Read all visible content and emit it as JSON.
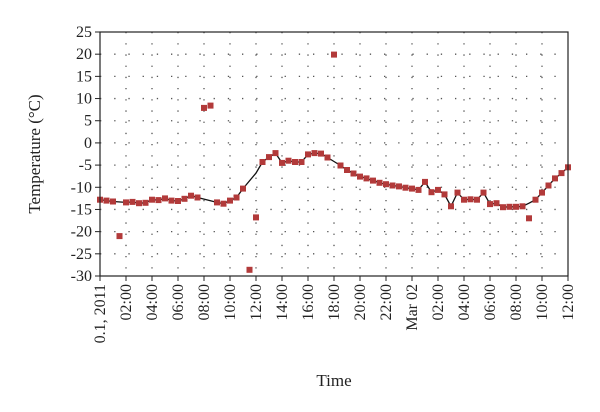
{
  "chart_data": {
    "type": "scatter",
    "title": "",
    "xlabel": "Time",
    "ylabel": "Temperature (°C)",
    "ylim": [
      -30,
      25
    ],
    "y_ticks": [
      25,
      20,
      15,
      10,
      5,
      0,
      -5,
      -10,
      -15,
      -20,
      -25,
      -30
    ],
    "xlim": [
      "2011-03-01 00:00",
      "2011-03-02 12:00"
    ],
    "x_ticks": [
      {
        "label": "0.1, 2011",
        "time": "2011-03-01 00:00"
      },
      {
        "label": "02:00",
        "time": "2011-03-01 02:00"
      },
      {
        "label": "04:00",
        "time": "2011-03-01 04:00"
      },
      {
        "label": "06:00",
        "time": "2011-03-01 06:00"
      },
      {
        "label": "08:00",
        "time": "2011-03-01 08:00"
      },
      {
        "label": "10:00",
        "time": "2011-03-01 10:00"
      },
      {
        "label": "12:00",
        "time": "2011-03-01 12:00"
      },
      {
        "label": "14:00",
        "time": "2011-03-01 14:00"
      },
      {
        "label": "16:00",
        "time": "2011-03-01 16:00"
      },
      {
        "label": "18:00",
        "time": "2011-03-01 18:00"
      },
      {
        "label": "20:00",
        "time": "2011-03-01 20:00"
      },
      {
        "label": "22:00",
        "time": "2011-03-01 22:00"
      },
      {
        "label": "Mar 02",
        "time": "2011-03-02 00:00"
      },
      {
        "label": "02:00",
        "time": "2011-03-02 02:00"
      },
      {
        "label": "04:00",
        "time": "2011-03-02 04:00"
      },
      {
        "label": "06:00",
        "time": "2011-03-02 06:00"
      },
      {
        "label": "08:00",
        "time": "2011-03-02 08:00"
      },
      {
        "label": "10:00",
        "time": "2011-03-02 10:00"
      },
      {
        "label": "12:00",
        "time": "2011-03-02 12:00"
      }
    ],
    "grid": true,
    "grid_style": "dotted",
    "legend": false,
    "colors": {
      "marker": "#b23a3a",
      "line": "#111111",
      "grid": "#555555"
    },
    "series": [
      {
        "kind": "line",
        "points": [
          [
            "2011-03-01 00:00",
            -12.8
          ],
          [
            "2011-03-01 00:30",
            -13.0
          ],
          [
            "2011-03-01 01:00",
            -13.2
          ],
          [
            "2011-03-01 02:00",
            -13.4
          ],
          [
            "2011-03-01 02:30",
            -13.3
          ],
          [
            "2011-03-01 03:00",
            -13.6
          ],
          [
            "2011-03-01 03:30",
            -13.5
          ],
          [
            "2011-03-01 04:00",
            -12.8
          ],
          [
            "2011-03-01 04:30",
            -12.9
          ],
          [
            "2011-03-01 05:00",
            -12.5
          ],
          [
            "2011-03-01 05:30",
            -13.0
          ],
          [
            "2011-03-01 06:00",
            -13.1
          ],
          [
            "2011-03-01 06:30",
            -12.6
          ],
          [
            "2011-03-01 07:00",
            -11.9
          ],
          [
            "2011-03-01 07:30",
            -12.3
          ],
          [
            "2011-03-01 09:00",
            -13.4
          ],
          [
            "2011-03-01 09:30",
            -13.7
          ],
          [
            "2011-03-01 10:00",
            -13.0
          ],
          [
            "2011-03-01 10:30",
            -12.3
          ],
          [
            "2011-03-01 11:00",
            -10.3
          ],
          [
            "2011-03-01 12:00",
            -6.8
          ],
          [
            "2011-03-01 12:30",
            -4.3
          ],
          [
            "2011-03-01 13:00",
            -3.2
          ],
          [
            "2011-03-01 13:30",
            -2.3
          ],
          [
            "2011-03-01 14:00",
            -4.5
          ],
          [
            "2011-03-01 14:30",
            -4.0
          ],
          [
            "2011-03-01 15:00",
            -4.3
          ],
          [
            "2011-03-01 15:30",
            -4.3
          ],
          [
            "2011-03-01 16:00",
            -2.6
          ],
          [
            "2011-03-01 16:30",
            -2.3
          ],
          [
            "2011-03-01 17:00",
            -2.4
          ],
          [
            "2011-03-01 17:30",
            -3.3
          ],
          [
            "2011-03-01 18:00",
            -4.2
          ],
          [
            "2011-03-01 18:30",
            -5.1
          ],
          [
            "2011-03-01 19:00",
            -6.1
          ],
          [
            "2011-03-01 19:30",
            -6.9
          ],
          [
            "2011-03-01 20:00",
            -7.6
          ],
          [
            "2011-03-01 20:30",
            -8.0
          ],
          [
            "2011-03-01 21:00",
            -8.5
          ],
          [
            "2011-03-01 21:30",
            -9.0
          ],
          [
            "2011-03-01 22:00",
            -9.3
          ],
          [
            "2011-03-01 22:30",
            -9.6
          ],
          [
            "2011-03-01 23:00",
            -9.8
          ],
          [
            "2011-03-01 23:30",
            -10.1
          ],
          [
            "2011-03-02 00:00",
            -10.3
          ],
          [
            "2011-03-02 00:30",
            -10.6
          ],
          [
            "2011-03-02 01:00",
            -8.8
          ],
          [
            "2011-03-02 01:30",
            -11.1
          ],
          [
            "2011-03-02 02:00",
            -10.6
          ],
          [
            "2011-03-02 02:30",
            -11.6
          ],
          [
            "2011-03-02 03:00",
            -14.3
          ],
          [
            "2011-03-02 03:30",
            -11.2
          ],
          [
            "2011-03-02 04:00",
            -12.8
          ],
          [
            "2011-03-02 04:30",
            -12.7
          ],
          [
            "2011-03-02 05:00",
            -12.8
          ],
          [
            "2011-03-02 05:30",
            -11.2
          ],
          [
            "2011-03-02 06:00",
            -13.8
          ],
          [
            "2011-03-02 06:30",
            -13.6
          ],
          [
            "2011-03-02 07:00",
            -14.5
          ],
          [
            "2011-03-02 07:30",
            -14.4
          ],
          [
            "2011-03-02 08:00",
            -14.4
          ],
          [
            "2011-03-02 08:30",
            -14.3
          ],
          [
            "2011-03-02 09:00",
            -13.6
          ],
          [
            "2011-03-02 09:30",
            -12.8
          ],
          [
            "2011-03-02 10:00",
            -11.2
          ],
          [
            "2011-03-02 10:30",
            -9.6
          ],
          [
            "2011-03-02 11:00",
            -8.0
          ],
          [
            "2011-03-02 11:30",
            -6.8
          ],
          [
            "2011-03-02 12:00",
            -5.5
          ]
        ]
      },
      {
        "kind": "scatter",
        "points": [
          [
            "2011-03-01 00:00",
            -12.8
          ],
          [
            "2011-03-01 00:30",
            -13.0
          ],
          [
            "2011-03-01 01:00",
            -13.2
          ],
          [
            "2011-03-01 01:30",
            -21.0
          ],
          [
            "2011-03-01 02:00",
            -13.4
          ],
          [
            "2011-03-01 02:30",
            -13.3
          ],
          [
            "2011-03-01 03:00",
            -13.6
          ],
          [
            "2011-03-01 03:30",
            -13.5
          ],
          [
            "2011-03-01 04:00",
            -12.8
          ],
          [
            "2011-03-01 04:30",
            -12.9
          ],
          [
            "2011-03-01 05:00",
            -12.5
          ],
          [
            "2011-03-01 05:30",
            -13.0
          ],
          [
            "2011-03-01 06:00",
            -13.1
          ],
          [
            "2011-03-01 06:30",
            -12.6
          ],
          [
            "2011-03-01 07:00",
            -11.9
          ],
          [
            "2011-03-01 07:30",
            -12.3
          ],
          [
            "2011-03-01 08:00",
            7.9
          ],
          [
            "2011-03-01 08:30",
            8.4
          ],
          [
            "2011-03-01 09:00",
            -13.4
          ],
          [
            "2011-03-01 09:30",
            -13.7
          ],
          [
            "2011-03-01 10:00",
            -13.0
          ],
          [
            "2011-03-01 10:30",
            -12.3
          ],
          [
            "2011-03-01 11:00",
            -10.3
          ],
          [
            "2011-03-01 11:30",
            -28.6
          ],
          [
            "2011-03-01 12:00",
            -16.8
          ],
          [
            "2011-03-01 12:30",
            -4.3
          ],
          [
            "2011-03-01 13:00",
            -3.2
          ],
          [
            "2011-03-01 13:30",
            -2.3
          ],
          [
            "2011-03-01 14:00",
            -4.5
          ],
          [
            "2011-03-01 14:30",
            -4.0
          ],
          [
            "2011-03-01 15:00",
            -4.3
          ],
          [
            "2011-03-01 15:30",
            -4.3
          ],
          [
            "2011-03-01 16:00",
            -2.6
          ],
          [
            "2011-03-01 16:30",
            -2.3
          ],
          [
            "2011-03-01 17:00",
            -2.4
          ],
          [
            "2011-03-01 17:30",
            -3.3
          ],
          [
            "2011-03-01 18:00",
            19.9
          ],
          [
            "2011-03-01 18:30",
            -5.1
          ],
          [
            "2011-03-01 19:00",
            -6.1
          ],
          [
            "2011-03-01 19:30",
            -6.9
          ],
          [
            "2011-03-01 20:00",
            -7.6
          ],
          [
            "2011-03-01 20:30",
            -8.0
          ],
          [
            "2011-03-01 21:00",
            -8.5
          ],
          [
            "2011-03-01 21:30",
            -9.0
          ],
          [
            "2011-03-01 22:00",
            -9.3
          ],
          [
            "2011-03-01 22:30",
            -9.6
          ],
          [
            "2011-03-01 23:00",
            -9.8
          ],
          [
            "2011-03-01 23:30",
            -10.1
          ],
          [
            "2011-03-02 00:00",
            -10.3
          ],
          [
            "2011-03-02 00:30",
            -10.6
          ],
          [
            "2011-03-02 01:00",
            -8.8
          ],
          [
            "2011-03-02 01:30",
            -11.1
          ],
          [
            "2011-03-02 02:00",
            -10.6
          ],
          [
            "2011-03-02 02:30",
            -11.6
          ],
          [
            "2011-03-02 03:00",
            -14.3
          ],
          [
            "2011-03-02 03:30",
            -11.2
          ],
          [
            "2011-03-02 04:00",
            -12.8
          ],
          [
            "2011-03-02 04:30",
            -12.7
          ],
          [
            "2011-03-02 05:00",
            -12.8
          ],
          [
            "2011-03-02 05:30",
            -11.2
          ],
          [
            "2011-03-02 06:00",
            -13.8
          ],
          [
            "2011-03-02 06:30",
            -13.6
          ],
          [
            "2011-03-02 07:00",
            -14.5
          ],
          [
            "2011-03-02 07:30",
            -14.4
          ],
          [
            "2011-03-02 08:00",
            -14.4
          ],
          [
            "2011-03-02 08:30",
            -14.3
          ],
          [
            "2011-03-02 09:00",
            -17.0
          ],
          [
            "2011-03-02 09:30",
            -12.8
          ],
          [
            "2011-03-02 10:00",
            -11.2
          ],
          [
            "2011-03-02 10:30",
            -9.6
          ],
          [
            "2011-03-02 11:00",
            -8.0
          ],
          [
            "2011-03-02 11:30",
            -6.8
          ],
          [
            "2011-03-02 12:00",
            -5.5
          ]
        ]
      }
    ]
  }
}
